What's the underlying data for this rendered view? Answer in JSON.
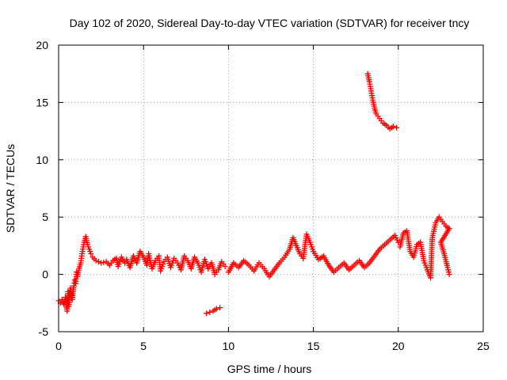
{
  "chart_data": {
    "type": "scatter",
    "title": "Day 102 of 2020, Sidereal Day-to-day VTEC variation (SDTVAR) for receiver tncy",
    "xlabel": "GPS time / hours",
    "ylabel": "SDTVAR / TECUs",
    "xlim": [
      0,
      25
    ],
    "ylim": [
      -5,
      20
    ],
    "xticks": [
      0,
      5,
      10,
      15,
      20,
      25
    ],
    "yticks": [
      -5,
      0,
      5,
      10,
      15,
      20
    ],
    "grid": true,
    "marker": "plus",
    "color": "#ff0000",
    "series": [
      {
        "name": "main-band-early",
        "points": [
          [
            0.0,
            -2.3
          ],
          [
            0.1,
            -2.5
          ],
          [
            0.2,
            -2.2
          ],
          [
            0.3,
            -2.6
          ],
          [
            0.4,
            -2.0
          ],
          [
            0.5,
            -3.2
          ],
          [
            0.55,
            -1.5
          ],
          [
            0.6,
            -2.8
          ],
          [
            0.7,
            -1.2
          ],
          [
            0.8,
            -2.2
          ],
          [
            0.9,
            -1.0
          ],
          [
            0.95,
            -0.5
          ],
          [
            1.0,
            -0.8
          ],
          [
            1.05,
            0.2
          ],
          [
            1.1,
            -0.2
          ],
          [
            1.2,
            0.5
          ],
          [
            1.3,
            1.0
          ],
          [
            1.4,
            2.0
          ],
          [
            1.5,
            2.8
          ],
          [
            1.6,
            3.3
          ],
          [
            1.7,
            2.6
          ],
          [
            1.8,
            2.2
          ],
          [
            1.9,
            1.8
          ],
          [
            2.0,
            1.5
          ],
          [
            2.2,
            1.2
          ],
          [
            2.5,
            1.0
          ],
          [
            2.8,
            1.1
          ],
          [
            3.0,
            0.8
          ],
          [
            3.2,
            1.2
          ],
          [
            3.4,
            1.4
          ],
          [
            3.5,
            0.7
          ],
          [
            3.7,
            1.5
          ],
          [
            3.9,
            1.0
          ],
          [
            4.0,
            1.3
          ],
          [
            4.2,
            0.6
          ],
          [
            4.4,
            1.6
          ],
          [
            4.6,
            1.0
          ],
          [
            4.8,
            2.0
          ],
          [
            5.0,
            1.5
          ],
          [
            5.2,
            0.8
          ],
          [
            5.3,
            1.8
          ],
          [
            5.5,
            0.5
          ],
          [
            5.7,
            1.2
          ],
          [
            5.9,
            1.6
          ],
          [
            6.0,
            0.3
          ],
          [
            6.2,
            1.1
          ],
          [
            6.4,
            1.5
          ],
          [
            6.6,
            0.6
          ],
          [
            6.8,
            1.4
          ],
          [
            7.0,
            1.0
          ],
          [
            7.2,
            0.4
          ],
          [
            7.4,
            1.6
          ],
          [
            7.6,
            1.2
          ],
          [
            7.8,
            0.5
          ],
          [
            8.0,
            1.5
          ],
          [
            8.2,
            1.0
          ],
          [
            8.4,
            0.2
          ],
          [
            8.6,
            1.3
          ],
          [
            8.8,
            0.5
          ],
          [
            9.0,
            1.0
          ],
          [
            9.2,
            0.0
          ],
          [
            9.4,
            0.4
          ],
          [
            9.6,
            1.1
          ],
          [
            9.8,
            0.7
          ]
        ]
      },
      {
        "name": "main-band-mid",
        "points": [
          [
            10.0,
            0.2
          ],
          [
            10.3,
            1.0
          ],
          [
            10.6,
            0.6
          ],
          [
            10.9,
            1.2
          ],
          [
            11.2,
            0.8
          ],
          [
            11.5,
            0.3
          ],
          [
            11.8,
            1.0
          ],
          [
            12.1,
            0.5
          ],
          [
            12.4,
            -0.2
          ],
          [
            12.7,
            0.4
          ],
          [
            13.0,
            1.0
          ],
          [
            13.3,
            1.5
          ],
          [
            13.6,
            2.2
          ],
          [
            13.8,
            3.2
          ],
          [
            14.0,
            2.5
          ],
          [
            14.2,
            1.8
          ],
          [
            14.4,
            1.4
          ],
          [
            14.6,
            3.5
          ],
          [
            14.8,
            2.8
          ],
          [
            15.0,
            2.0
          ],
          [
            15.3,
            1.3
          ],
          [
            15.6,
            1.6
          ],
          [
            15.9,
            0.8
          ],
          [
            16.2,
            0.2
          ],
          [
            16.5,
            0.6
          ],
          [
            16.8,
            1.0
          ],
          [
            17.1,
            0.4
          ],
          [
            17.4,
            0.8
          ],
          [
            17.7,
            1.2
          ],
          [
            18.0,
            0.6
          ],
          [
            18.3,
            1.0
          ],
          [
            18.6,
            1.6
          ],
          [
            18.9,
            2.2
          ],
          [
            19.2,
            2.6
          ],
          [
            19.5,
            3.0
          ],
          [
            19.8,
            3.4
          ],
          [
            20.0,
            2.8
          ]
        ]
      },
      {
        "name": "main-band-late",
        "points": [
          [
            20.1,
            2.4
          ],
          [
            20.3,
            3.6
          ],
          [
            20.5,
            3.8
          ],
          [
            20.7,
            2.0
          ],
          [
            20.9,
            1.5
          ],
          [
            21.1,
            2.6
          ],
          [
            21.3,
            2.8
          ],
          [
            21.5,
            1.2
          ],
          [
            21.7,
            0.4
          ],
          [
            21.9,
            -0.3
          ],
          [
            22.0,
            3.2
          ],
          [
            22.2,
            4.5
          ],
          [
            22.4,
            5.0
          ],
          [
            22.6,
            4.6
          ],
          [
            22.8,
            4.2
          ],
          [
            23.0,
            4.0
          ],
          [
            22.5,
            2.8
          ],
          [
            22.7,
            1.8
          ],
          [
            22.9,
            0.6
          ],
          [
            23.0,
            0.0
          ]
        ]
      },
      {
        "name": "low-segment",
        "points": [
          [
            8.7,
            -3.4
          ],
          [
            8.9,
            -3.3
          ],
          [
            9.1,
            -3.2
          ],
          [
            9.3,
            -3.0
          ],
          [
            9.5,
            -2.9
          ]
        ]
      },
      {
        "name": "high-segment",
        "points": [
          [
            18.2,
            17.5
          ],
          [
            18.3,
            16.8
          ],
          [
            18.4,
            16.0
          ],
          [
            18.5,
            15.2
          ],
          [
            18.6,
            14.5
          ],
          [
            18.7,
            14.0
          ],
          [
            18.9,
            13.6
          ],
          [
            19.1,
            13.2
          ],
          [
            19.3,
            13.0
          ],
          [
            19.5,
            12.7
          ],
          [
            19.7,
            12.9
          ],
          [
            19.9,
            12.8
          ]
        ]
      }
    ]
  }
}
